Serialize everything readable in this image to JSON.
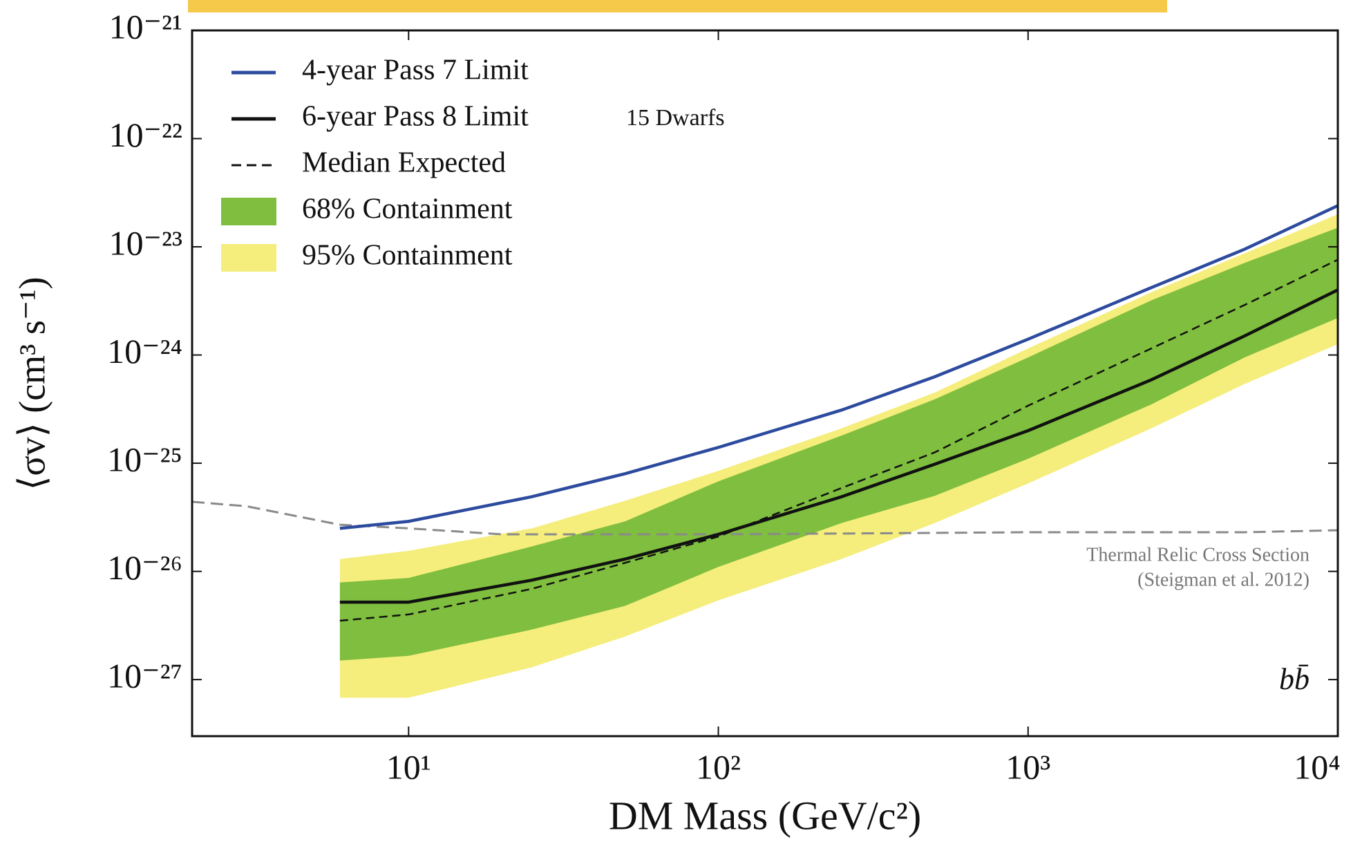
{
  "chart_data": {
    "type": "line",
    "x_label": "DM Mass (GeV/c²)",
    "y_label": "⟨σv⟩ (cm³ s⁻¹)",
    "log_x": true,
    "log_y": true,
    "xlim": [
      2,
      10000
    ],
    "ylim": [
      3e-28,
      1e-21
    ],
    "xticks": [
      {
        "value": 10,
        "label": "10¹"
      },
      {
        "value": 100,
        "label": "10²"
      },
      {
        "value": 1000,
        "label": "10³"
      },
      {
        "value": 10000,
        "label": "10⁴"
      }
    ],
    "yticks": [
      {
        "value": 1e-27,
        "label": "10⁻²⁷"
      },
      {
        "value": 1e-26,
        "label": "10⁻²⁶"
      },
      {
        "value": 1e-25,
        "label": "10⁻²⁵"
      },
      {
        "value": 1e-24,
        "label": "10⁻²⁴"
      },
      {
        "value": 1e-23,
        "label": "10⁻²³"
      },
      {
        "value": 1e-22,
        "label": "10⁻²²"
      },
      {
        "value": 1e-21,
        "label": "10⁻²¹"
      }
    ],
    "legend": "upper left",
    "x": [
      6,
      10,
      25,
      50,
      100,
      250,
      500,
      1000,
      2500,
      5000,
      10000
    ],
    "series": [
      {
        "name": "4-year Pass 7 Limit",
        "color": "#2d4b9e",
        "dashed": false,
        "values": [
          2.5e-26,
          2.9e-26,
          4.9e-26,
          8e-26,
          1.4e-25,
          3.1e-25,
          6.3e-25,
          1.4e-24,
          4.2e-24,
          9.5e-24,
          2.4e-23
        ]
      },
      {
        "name": "6-year Pass 8 Limit",
        "color": "#111111",
        "dashed": false,
        "values": [
          5.2e-27,
          5.2e-27,
          8.3e-27,
          1.3e-26,
          2.2e-26,
          4.9e-26,
          9.8e-26,
          2e-25,
          5.9e-25,
          1.5e-24,
          4e-24
        ]
      },
      {
        "name": "Median Expected",
        "color": "#111111",
        "dashed": true,
        "values": [
          3.5e-27,
          4e-27,
          6.9e-27,
          1.2e-26,
          2.1e-26,
          5.9e-26,
          1.26e-25,
          3.4e-25,
          1.15e-24,
          2.9e-24,
          7.6e-24
        ]
      }
    ],
    "bands": [
      {
        "name": "68% Containment",
        "color": "#7fbe3e",
        "lower": [
          1.5e-27,
          1.66e-27,
          2.9e-27,
          4.8e-27,
          1.1e-26,
          2.8e-26,
          5e-26,
          1.1e-25,
          3.5e-25,
          9.5e-25,
          2.2e-24
        ],
        "upper": [
          7.9e-27,
          8.7e-27,
          1.7e-26,
          2.9e-26,
          6.8e-26,
          1.8e-25,
          3.9e-25,
          9.5e-25,
          3.2e-24,
          7.1e-24,
          1.5e-23
        ]
      },
      {
        "name": "95% Containment",
        "color": "#f5ed7c",
        "lower": [
          6.8e-28,
          6.8e-28,
          1.3e-27,
          2.5e-27,
          5.4e-27,
          1.3e-26,
          2.8e-26,
          6.5e-26,
          2.1e-25,
          5.4e-25,
          1.26e-24
        ],
        "upper": [
          1.3e-26,
          1.55e-26,
          2.5e-26,
          4.5e-26,
          8.5e-26,
          2.1e-25,
          4.5e-25,
          1.15e-24,
          3.8e-24,
          8.7e-24,
          2e-23
        ]
      }
    ],
    "reference_line": {
      "color": "#8a8a8a",
      "x": [
        2,
        3,
        6,
        10,
        20,
        50,
        100,
        1000,
        5000,
        10000
      ],
      "values": [
        4.4e-26,
        4e-26,
        2.7e-26,
        2.5e-26,
        2.2e-26,
        2.2e-26,
        2.2e-26,
        2.3e-26,
        2.3e-26,
        2.4e-26
      ]
    },
    "annotations": [
      "15 Dwarfs",
      "Thermal Relic Cross Section",
      "(Steigman et al. 2012)",
      "bb̄"
    ]
  }
}
